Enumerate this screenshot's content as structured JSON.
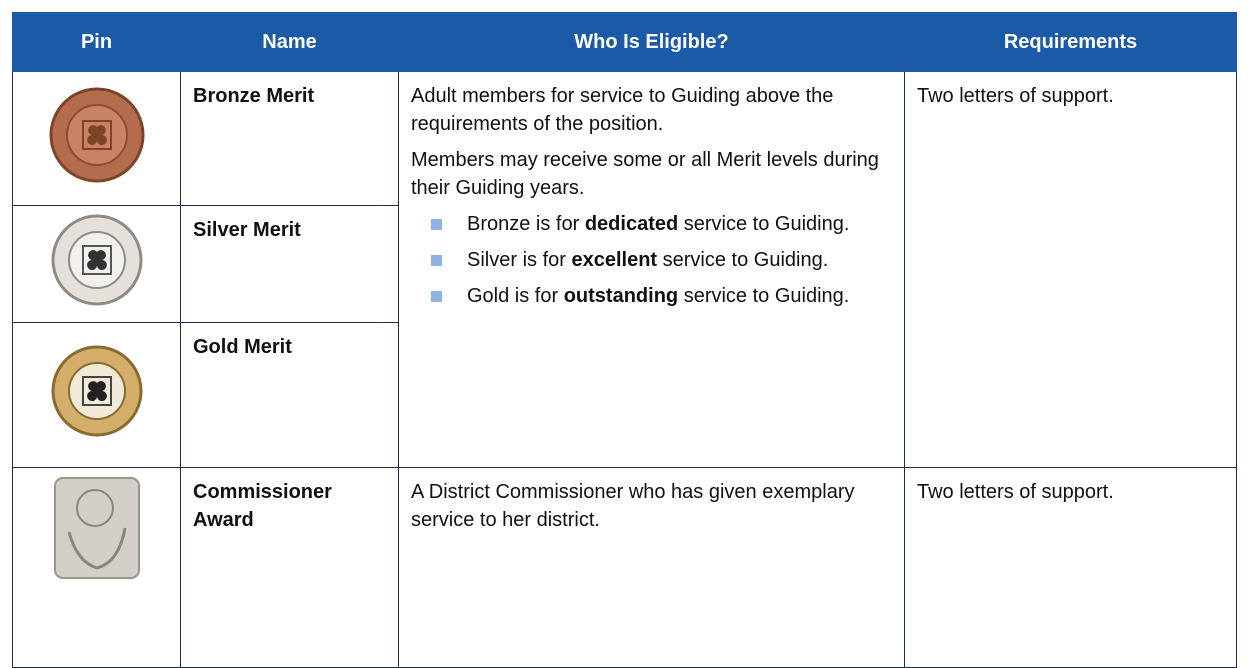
{
  "table": {
    "header": [
      "Pin",
      "Name",
      "Who Is Eligible?",
      "Requirements"
    ],
    "rows": [
      {
        "name": "Bronze Merit"
      },
      {
        "name": "Silver Merit"
      },
      {
        "name": "Gold Merit"
      },
      {
        "name": "Commissioner Award"
      }
    ],
    "merit": {
      "paragraphs": [
        "Adult members for service to Guiding above the requirements of the position.",
        "Members may receive some or all Merit levels during their Guiding years."
      ],
      "bullets": [
        {
          "before": "Bronze is for ",
          "bold": "dedicated",
          "after": " service to Guiding."
        },
        {
          "before": "Silver is for ",
          "bold": "excellent",
          "after": " service to Guiding."
        },
        {
          "before": "Gold is for ",
          "bold": "outstanding",
          "after": " service to Guiding."
        }
      ],
      "requirements": "Two letters of support."
    },
    "commissioner": {
      "eligibility": "A District Commissioner who has given exemplary service to her district.",
      "requirements": "Two letters of support."
    }
  }
}
